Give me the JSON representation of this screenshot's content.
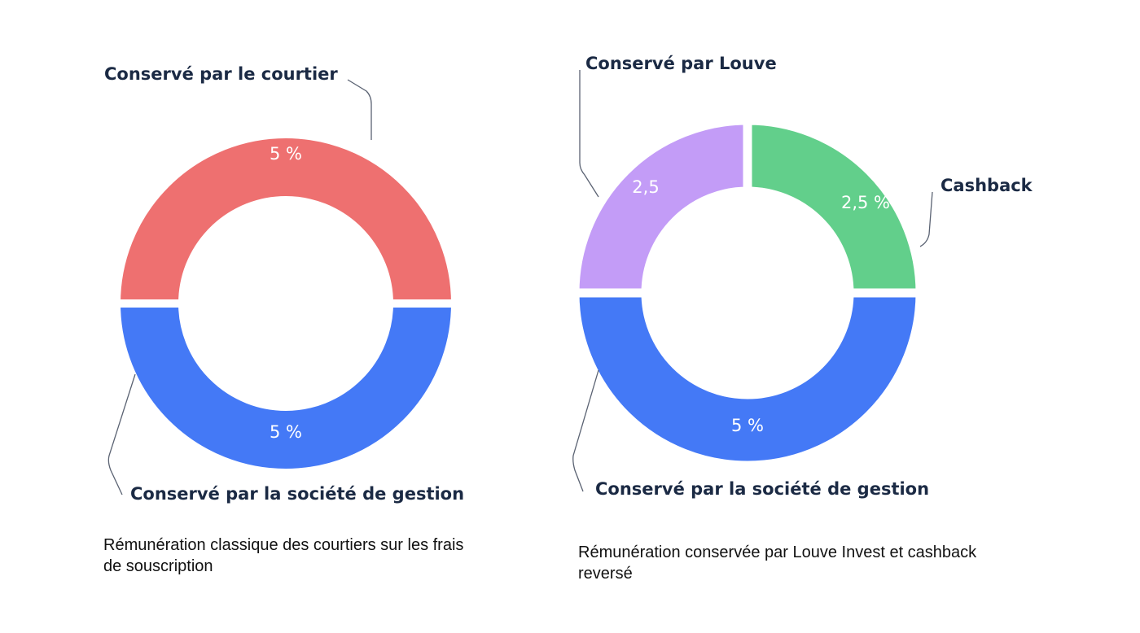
{
  "chart_data": [
    {
      "type": "pie",
      "title": "",
      "caption": "Rémunération classique des courtiers sur les frais de souscription",
      "slices": [
        {
          "label": "Conservé par le courtier",
          "value": 5,
          "value_label": "5 %",
          "color": "#ee7070"
        },
        {
          "label": "Conservé par la société de gestion",
          "value": 5,
          "value_label": "5 %",
          "color": "#4479f6"
        }
      ]
    },
    {
      "type": "pie",
      "title": "",
      "caption": "Rémunération conservée par Louve Invest et cashback reversé",
      "slices": [
        {
          "label": "Cashback",
          "value": 2.5,
          "value_label": "2,5 %",
          "color": "#62cf8b"
        },
        {
          "label": "Conservé par la société de gestion",
          "value": 5,
          "value_label": "5 %",
          "color": "#4479f6"
        },
        {
          "label": "Conservé par Louve",
          "value": 2.5,
          "value_label": "2,5",
          "color": "#c39cf7"
        }
      ]
    }
  ]
}
